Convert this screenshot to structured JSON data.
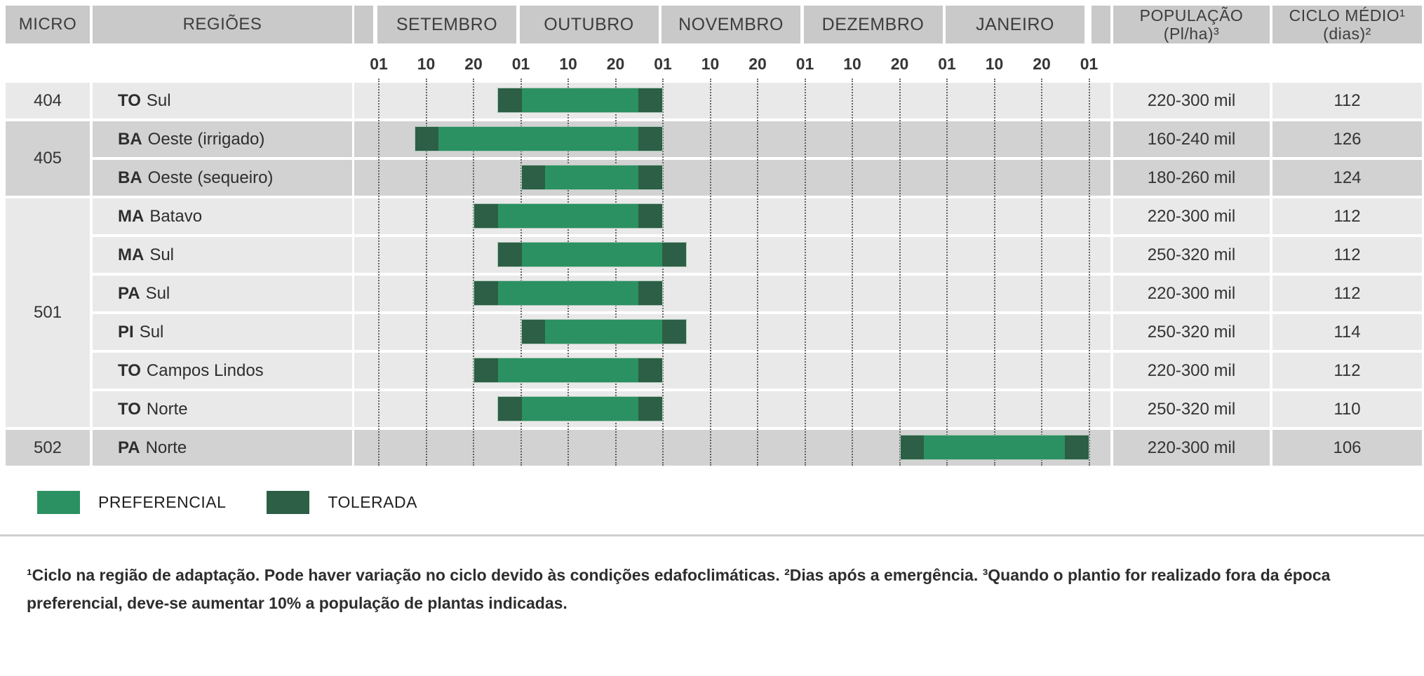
{
  "header": {
    "micro_label": "MICRO",
    "regioes_label": "REGIÕES",
    "months": [
      "SETEMBRO",
      "OUTUBRO",
      "NOVEMBRO",
      "DEZEMBRO",
      "JANEIRO"
    ],
    "day_ticks": [
      "01",
      "10",
      "20"
    ],
    "final_tick": "01",
    "populacao_label": [
      "POPULAÇÃO",
      "(Pl/ha)³"
    ],
    "ciclo_label": [
      "CICLO MÉDIO¹",
      "(dias)²"
    ]
  },
  "groups": [
    {
      "micro": "404",
      "row_start": 0,
      "row_count": 1,
      "shade": "light"
    },
    {
      "micro": "405",
      "row_start": 1,
      "row_count": 2,
      "shade": "dark"
    },
    {
      "micro": "501",
      "row_start": 3,
      "row_count": 6,
      "shade": "light"
    },
    {
      "micro": "502",
      "row_start": 9,
      "row_count": 1,
      "shade": "dark"
    }
  ],
  "rows": [
    {
      "uf": "TO",
      "region": "Sul",
      "shade": "light",
      "bar": {
        "start": 2.5,
        "pref_start": 3,
        "pref_end": 5.5,
        "end": 6
      },
      "populacao": "220-300 mil",
      "ciclo": "112"
    },
    {
      "uf": "BA",
      "region": "Oeste (irrigado)",
      "shade": "dark",
      "bar": {
        "start": 0.75,
        "pref_start": 1.25,
        "pref_end": 5.5,
        "end": 6
      },
      "populacao": "160-240 mil",
      "ciclo": "126"
    },
    {
      "uf": "BA",
      "region": "Oeste (sequeiro)",
      "shade": "dark",
      "bar": {
        "start": 3,
        "pref_start": 3.5,
        "pref_end": 5.5,
        "end": 6
      },
      "populacao": "180-260 mil",
      "ciclo": "124"
    },
    {
      "uf": "MA",
      "region": "Batavo",
      "shade": "light",
      "bar": {
        "start": 2,
        "pref_start": 2.5,
        "pref_end": 5.5,
        "end": 6
      },
      "populacao": "220-300 mil",
      "ciclo": "112"
    },
    {
      "uf": "MA",
      "region": "Sul",
      "shade": "light",
      "bar": {
        "start": 2.5,
        "pref_start": 3,
        "pref_end": 6,
        "end": 6.5
      },
      "populacao": "250-320 mil",
      "ciclo": "112"
    },
    {
      "uf": "PA",
      "region": "Sul",
      "shade": "light",
      "bar": {
        "start": 2,
        "pref_start": 2.5,
        "pref_end": 5.5,
        "end": 6
      },
      "populacao": "220-300 mil",
      "ciclo": "112"
    },
    {
      "uf": "PI",
      "region": "Sul",
      "shade": "light",
      "bar": {
        "start": 3,
        "pref_start": 3.5,
        "pref_end": 6,
        "end": 6.5
      },
      "populacao": "250-320 mil",
      "ciclo": "114"
    },
    {
      "uf": "TO",
      "region": "Campos Lindos",
      "shade": "light",
      "bar": {
        "start": 2,
        "pref_start": 2.5,
        "pref_end": 5.5,
        "end": 6
      },
      "populacao": "220-300 mil",
      "ciclo": "112"
    },
    {
      "uf": "TO",
      "region": "Norte",
      "shade": "light",
      "bar": {
        "start": 2.5,
        "pref_start": 3,
        "pref_end": 5.5,
        "end": 6
      },
      "populacao": "250-320 mil",
      "ciclo": "110"
    },
    {
      "uf": "PA",
      "region": "Norte",
      "shade": "dark",
      "bar": {
        "start": 11,
        "pref_start": 11.5,
        "pref_end": 14.5,
        "end": 15
      },
      "populacao": "220-300 mil",
      "ciclo": "106"
    }
  ],
  "legend": [
    {
      "label": "PREFERENCIAL",
      "color": "#2b9162"
    },
    {
      "label": "TOLERADA",
      "color": "#2c5f45"
    }
  ],
  "footnote": "¹Ciclo na região de adaptação. Pode haver variação no ciclo devido às condições edafoclimáticas. ²Dias após a emergência. ³Quando o plantio for realizado fora da época preferencial, deve-se aumentar 10% a população de plantas indicadas.",
  "colors": {
    "preferencial": "#2b9162",
    "tolerada": "#2c5f45",
    "header_block": "#c9c9c9",
    "row_light": "#e9e9e9",
    "row_dark": "#d2d2d2"
  },
  "chart_data": {
    "type": "bar",
    "variant": "gantt-planting-windows",
    "x_axis": {
      "months": [
        "SETEMBRO",
        "OUTUBRO",
        "NOVEMBRO",
        "DEZEMBRO",
        "JANEIRO"
      ],
      "ticks_per_month": [
        "01",
        "10",
        "20"
      ],
      "range": [
        "01 set",
        "01 fev"
      ],
      "unit_note": "bar positions in tick units u: 1 u = 1 intervalo de ~10 dias a partir de 01 set"
    },
    "legend": [
      "PREFERENCIAL",
      "TOLERADA"
    ],
    "series": [
      {
        "micro": "404",
        "regiao": "TO Sul",
        "janela_total": "25 set – 01 nov",
        "preferencial": "01 out – 25 out",
        "u": [
          2.5,
          3,
          5.5,
          6
        ],
        "populacao_pl_ha": "220-300 mil",
        "ciclo_medio_dias": 112
      },
      {
        "micro": "405",
        "regiao": "BA Oeste (irrigado)",
        "janela_total": "08 set – 01 nov",
        "preferencial": "13 set – 25 out",
        "u": [
          0.75,
          1.25,
          5.5,
          6
        ],
        "populacao_pl_ha": "160-240 mil",
        "ciclo_medio_dias": 126
      },
      {
        "micro": "405",
        "regiao": "BA Oeste (sequeiro)",
        "janela_total": "01 out – 01 nov",
        "preferencial": "05 out – 25 out",
        "u": [
          3,
          3.5,
          5.5,
          6
        ],
        "populacao_pl_ha": "180-260 mil",
        "ciclo_medio_dias": 124
      },
      {
        "micro": "501",
        "regiao": "MA Batavo",
        "janela_total": "20 set – 01 nov",
        "preferencial": "25 set – 25 out",
        "u": [
          2,
          2.5,
          5.5,
          6
        ],
        "populacao_pl_ha": "220-300 mil",
        "ciclo_medio_dias": 112
      },
      {
        "micro": "501",
        "regiao": "MA Sul",
        "janela_total": "25 set – 05 nov",
        "preferencial": "01 out – 01 nov",
        "u": [
          2.5,
          3,
          6,
          6.5
        ],
        "populacao_pl_ha": "250-320 mil",
        "ciclo_medio_dias": 112
      },
      {
        "micro": "501",
        "regiao": "PA Sul",
        "janela_total": "20 set – 01 nov",
        "preferencial": "25 set – 25 out",
        "u": [
          2,
          2.5,
          5.5,
          6
        ],
        "populacao_pl_ha": "220-300 mil",
        "ciclo_medio_dias": 112
      },
      {
        "micro": "501",
        "regiao": "PI Sul",
        "janela_total": "01 out – 05 nov",
        "preferencial": "05 out – 01 nov",
        "u": [
          3,
          3.5,
          6,
          6.5
        ],
        "populacao_pl_ha": "250-320 mil",
        "ciclo_medio_dias": 114
      },
      {
        "micro": "501",
        "regiao": "TO Campos Lindos",
        "janela_total": "20 set – 01 nov",
        "preferencial": "25 set – 25 out",
        "u": [
          2,
          2.5,
          5.5,
          6
        ],
        "populacao_pl_ha": "220-300 mil",
        "ciclo_medio_dias": 112
      },
      {
        "micro": "501",
        "regiao": "TO Norte",
        "janela_total": "25 set – 01 nov",
        "preferencial": "01 out – 25 out",
        "u": [
          2.5,
          3,
          5.5,
          6
        ],
        "populacao_pl_ha": "250-320 mil",
        "ciclo_medio_dias": 110
      },
      {
        "micro": "502",
        "regiao": "PA Norte",
        "janela_total": "20 dez – 01 fev",
        "preferencial": "26 dez – 26 jan",
        "u": [
          11,
          11.5,
          14.5,
          15
        ],
        "populacao_pl_ha": "220-300 mil",
        "ciclo_medio_dias": 106
      }
    ]
  }
}
